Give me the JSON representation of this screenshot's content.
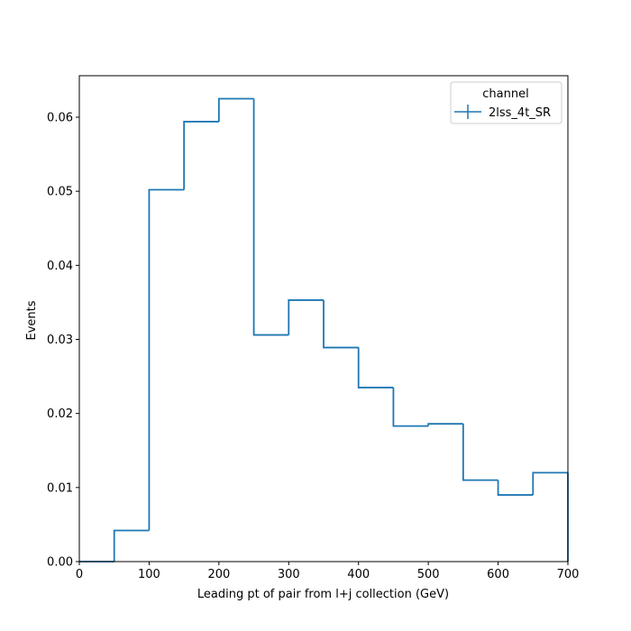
{
  "chart_data": {
    "type": "bar",
    "histtype": "step",
    "xlabel": "Leading pt of pair from l+j collection (GeV)",
    "ylabel": "Events",
    "xlim": [
      0,
      700
    ],
    "ylim": [
      0,
      0.0656
    ],
    "x_ticks": [
      0,
      100,
      200,
      300,
      400,
      500,
      600,
      700
    ],
    "x_tick_labels": [
      "0",
      "100",
      "200",
      "300",
      "400",
      "500",
      "600",
      "700"
    ],
    "y_ticks": [
      0,
      0.01,
      0.02,
      0.03,
      0.04,
      0.05,
      0.06
    ],
    "y_tick_labels": [
      "0.00",
      "0.01",
      "0.02",
      "0.03",
      "0.04",
      "0.05",
      "0.06"
    ],
    "bin_edges": [
      0,
      50,
      100,
      150,
      200,
      250,
      300,
      350,
      400,
      450,
      500,
      550,
      600,
      650,
      700
    ],
    "series": [
      {
        "name": "2lss_4t_SR",
        "color": "#1f77b4",
        "values": [
          0.0,
          0.0042,
          0.0502,
          0.0594,
          0.0625,
          0.0306,
          0.0353,
          0.0289,
          0.0235,
          0.0183,
          0.0186,
          0.011,
          0.009,
          0.012
        ]
      }
    ],
    "legend": {
      "title": "channel",
      "placement": "top-right"
    },
    "grid": false
  }
}
